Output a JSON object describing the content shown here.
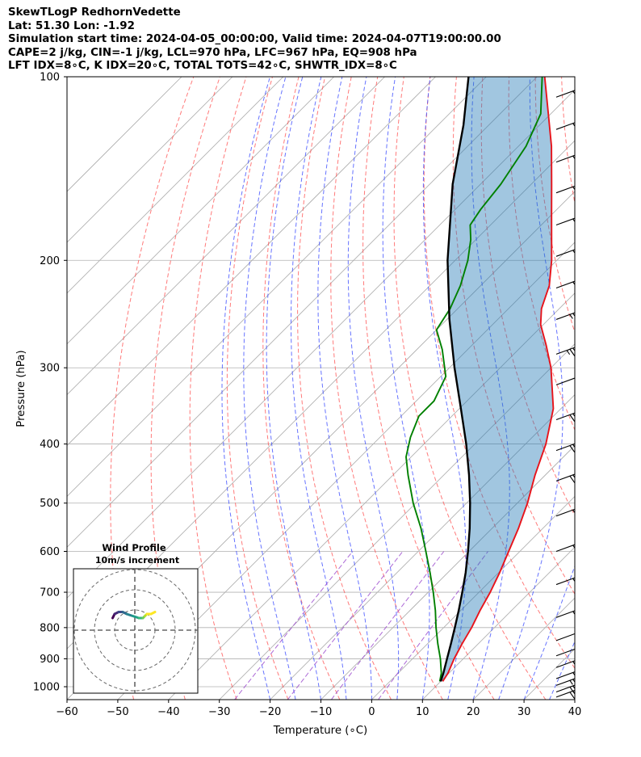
{
  "header": {
    "line1": "SkewTLogP RedhornVedette",
    "line2": "Lat: 51.30   Lon: -1.92",
    "line3": "Simulation start time: 2024-04-05_00:00:00, Valid time: 2024-04-07T19:00:00.00",
    "line4": "CAPE=2 j/kg, CIN=-1 j/kg, LCL=970 hPa, LFC=967 hPa, EQ=908 hPa",
    "line5": "LFT IDX=8∘C, K IDX=20∘C, TOTAL TOTS=42∘C, SHWTR_IDX=8∘C"
  },
  "chart_data": {
    "type": "skewt",
    "xlabel": "Temperature (∘C)",
    "ylabel": "Pressure (hPa)",
    "xlim": [
      -60,
      40
    ],
    "ylim": [
      1050,
      100
    ],
    "y_scale": "log",
    "skew_degrees": 45,
    "x_ticks": [
      -60,
      -50,
      -40,
      -30,
      -20,
      -10,
      0,
      10,
      20,
      30,
      40
    ],
    "y_ticks": [
      100,
      200,
      300,
      400,
      500,
      600,
      700,
      800,
      900,
      1000
    ],
    "grid": true,
    "colors": {
      "temperature": "#e8131a",
      "dewpoint": "#008000",
      "parcel": "#000000",
      "cape_fill": "#1f77b4",
      "dry_adiabats": "#ff4d4d",
      "moist_adiabats": "#3344ff",
      "mixing_ratio": "#9e4fcf",
      "isotherms": "#aaaaaa"
    },
    "temperature": [
      {
        "p": 980,
        "t": 10.4
      },
      {
        "p": 950,
        "t": 9.8
      },
      {
        "p": 900,
        "t": 8.2
      },
      {
        "p": 850,
        "t": 6.8
      },
      {
        "p": 800,
        "t": 5.5
      },
      {
        "p": 750,
        "t": 3.8
      },
      {
        "p": 700,
        "t": 2.2
      },
      {
        "p": 650,
        "t": 0.2
      },
      {
        "p": 600,
        "t": -2.2
      },
      {
        "p": 550,
        "t": -4.8
      },
      {
        "p": 500,
        "t": -8.0
      },
      {
        "p": 450,
        "t": -12.0
      },
      {
        "p": 400,
        "t": -16.0
      },
      {
        "p": 350,
        "t": -21.5
      },
      {
        "p": 300,
        "t": -30.0
      },
      {
        "p": 275,
        "t": -35.5
      },
      {
        "p": 255,
        "t": -40.5
      },
      {
        "p": 240,
        "t": -43.5
      },
      {
        "p": 220,
        "t": -46.5
      },
      {
        "p": 200,
        "t": -51.0
      },
      {
        "p": 170,
        "t": -59.5
      },
      {
        "p": 150,
        "t": -66.0
      },
      {
        "p": 130,
        "t": -73.5
      },
      {
        "p": 115,
        "t": -80.5
      },
      {
        "p": 100,
        "t": -88.5
      }
    ],
    "dewpoint": [
      {
        "p": 980,
        "t": 9.8
      },
      {
        "p": 950,
        "t": 8.5
      },
      {
        "p": 900,
        "t": 5.5
      },
      {
        "p": 850,
        "t": 2.0
      },
      {
        "p": 800,
        "t": -1.5
      },
      {
        "p": 750,
        "t": -5.0
      },
      {
        "p": 700,
        "t": -9.0
      },
      {
        "p": 650,
        "t": -13.5
      },
      {
        "p": 600,
        "t": -18.5
      },
      {
        "p": 550,
        "t": -24.0
      },
      {
        "p": 500,
        "t": -30.5
      },
      {
        "p": 450,
        "t": -37.0
      },
      {
        "p": 420,
        "t": -41.0
      },
      {
        "p": 390,
        "t": -44.0
      },
      {
        "p": 360,
        "t": -46.5
      },
      {
        "p": 340,
        "t": -46.5
      },
      {
        "p": 310,
        "t": -49.0
      },
      {
        "p": 280,
        "t": -55.0
      },
      {
        "p": 260,
        "t": -60.0
      },
      {
        "p": 240,
        "t": -61.5
      },
      {
        "p": 220,
        "t": -64.0
      },
      {
        "p": 200,
        "t": -67.5
      },
      {
        "p": 185,
        "t": -71.0
      },
      {
        "p": 175,
        "t": -74.0
      },
      {
        "p": 165,
        "t": -75.0
      },
      {
        "p": 150,
        "t": -76.0
      },
      {
        "p": 130,
        "t": -78.5
      },
      {
        "p": 115,
        "t": -82.0
      },
      {
        "p": 100,
        "t": -89.0
      }
    ],
    "parcel": [
      {
        "p": 980,
        "t": 10.0
      },
      {
        "p": 950,
        "t": 8.9
      },
      {
        "p": 900,
        "t": 6.8
      },
      {
        "p": 850,
        "t": 4.6
      },
      {
        "p": 800,
        "t": 2.2
      },
      {
        "p": 750,
        "t": -0.4
      },
      {
        "p": 700,
        "t": -3.3
      },
      {
        "p": 650,
        "t": -6.5
      },
      {
        "p": 600,
        "t": -10.2
      },
      {
        "p": 550,
        "t": -14.4
      },
      {
        "p": 500,
        "t": -19.3
      },
      {
        "p": 450,
        "t": -25.0
      },
      {
        "p": 400,
        "t": -31.7
      },
      {
        "p": 350,
        "t": -39.7
      },
      {
        "p": 300,
        "t": -49.0
      },
      {
        "p": 250,
        "t": -59.5
      },
      {
        "p": 200,
        "t": -71.5
      },
      {
        "p": 150,
        "t": -85.5
      },
      {
        "p": 120,
        "t": -95.0
      },
      {
        "p": 100,
        "t": -103.5
      }
    ],
    "wind_barbs": [
      {
        "p": 1040,
        "speed_kt": 40,
        "dir_deg": 250
      },
      {
        "p": 1020,
        "speed_kt": 40,
        "dir_deg": 250
      },
      {
        "p": 995,
        "speed_kt": 35,
        "dir_deg": 250
      },
      {
        "p": 970,
        "speed_kt": 30,
        "dir_deg": 250
      },
      {
        "p": 930,
        "speed_kt": 25,
        "dir_deg": 250
      },
      {
        "p": 890,
        "speed_kt": 20,
        "dir_deg": 250
      },
      {
        "p": 840,
        "speed_kt": 20,
        "dir_deg": 250
      },
      {
        "p": 770,
        "speed_kt": 25,
        "dir_deg": 250
      },
      {
        "p": 680,
        "speed_kt": 25,
        "dir_deg": 250
      },
      {
        "p": 600,
        "speed_kt": 30,
        "dir_deg": 250
      },
      {
        "p": 525,
        "speed_kt": 30,
        "dir_deg": 250
      },
      {
        "p": 460,
        "speed_kt": 40,
        "dir_deg": 250
      },
      {
        "p": 410,
        "speed_kt": 40,
        "dir_deg": 250
      },
      {
        "p": 365,
        "speed_kt": 40,
        "dir_deg": 250
      },
      {
        "p": 320,
        "speed_kt": 50,
        "dir_deg": 250
      },
      {
        "p": 285,
        "speed_kt": 45,
        "dir_deg": 250
      },
      {
        "p": 250,
        "speed_kt": 35,
        "dir_deg": 250
      },
      {
        "p": 222,
        "speed_kt": 30,
        "dir_deg": 250
      },
      {
        "p": 197,
        "speed_kt": 30,
        "dir_deg": 250
      },
      {
        "p": 175,
        "speed_kt": 25,
        "dir_deg": 250
      },
      {
        "p": 155,
        "speed_kt": 25,
        "dir_deg": 250
      },
      {
        "p": 138,
        "speed_kt": 25,
        "dir_deg": 250
      },
      {
        "p": 122,
        "speed_kt": 25,
        "dir_deg": 250
      },
      {
        "p": 108,
        "speed_kt": 25,
        "dir_deg": 250
      }
    ],
    "inset": {
      "title": "Wind Profile",
      "subtitle": "10m/s increment",
      "ring_step_ms": 10,
      "rings": 3,
      "hodograph_points_ms": [
        [
          -11,
          6
        ],
        [
          -10,
          8
        ],
        [
          -8,
          9
        ],
        [
          -6,
          9
        ],
        [
          -4,
          8
        ],
        [
          -1,
          7
        ],
        [
          2,
          6
        ],
        [
          4,
          6
        ],
        [
          5,
          7
        ],
        [
          6,
          8
        ],
        [
          8,
          8
        ],
        [
          10,
          9
        ]
      ]
    }
  }
}
